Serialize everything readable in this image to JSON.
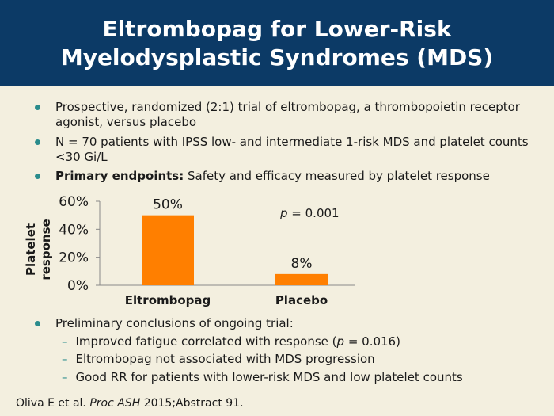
{
  "slide": {
    "title_line1": "Eltrombopag for Lower-Risk",
    "title_line2": "Myelodysplastic Syndromes (MDS)"
  },
  "bullets": [
    {
      "text": "Prospective, randomized (2:1) trial of eltrombopag, a thrombopoietin receptor agonist, versus placebo"
    },
    {
      "text": "N = 70 patients with IPSS low- and intermediate 1-risk MDS and platelet counts <30 Gi/L"
    },
    {
      "bold": "Primary endpoints:",
      "text": " Safety and efficacy measured by platelet response"
    }
  ],
  "conclusions": {
    "heading": "Preliminary conclusions of ongoing trial:",
    "items": [
      {
        "pre": "Improved fatigue correlated with response (",
        "italic": "p",
        "post": " = 0.016)"
      },
      {
        "text": "Eltrombopag not associated with MDS progression"
      },
      {
        "text": "Good RR for patients with lower-risk MDS and low platelet counts"
      }
    ]
  },
  "reference": {
    "authors": "Oliva E et al. ",
    "journal": "Proc ASH",
    "rest": " 2015;Abstract 91."
  },
  "chart_data": {
    "type": "bar",
    "categories": [
      "Eltrombopag",
      "Placebo"
    ],
    "values": [
      50,
      8
    ],
    "data_labels": [
      "50%",
      "8%"
    ],
    "ylabel_line1": "Platelet",
    "ylabel_line2": "response",
    "ylim": [
      0,
      60
    ],
    "yticks": [
      0,
      20,
      40,
      60
    ],
    "ytick_labels": [
      "0%",
      "20%",
      "40%",
      "60%"
    ],
    "annotation_italic": "p",
    "annotation_rest": " = 0.001",
    "bar_color": "#ff7f00",
    "grid": false
  },
  "colors": {
    "title_bg": "#0c3a66",
    "background": "#f3efdf",
    "bullet": "#2a8c8c"
  }
}
